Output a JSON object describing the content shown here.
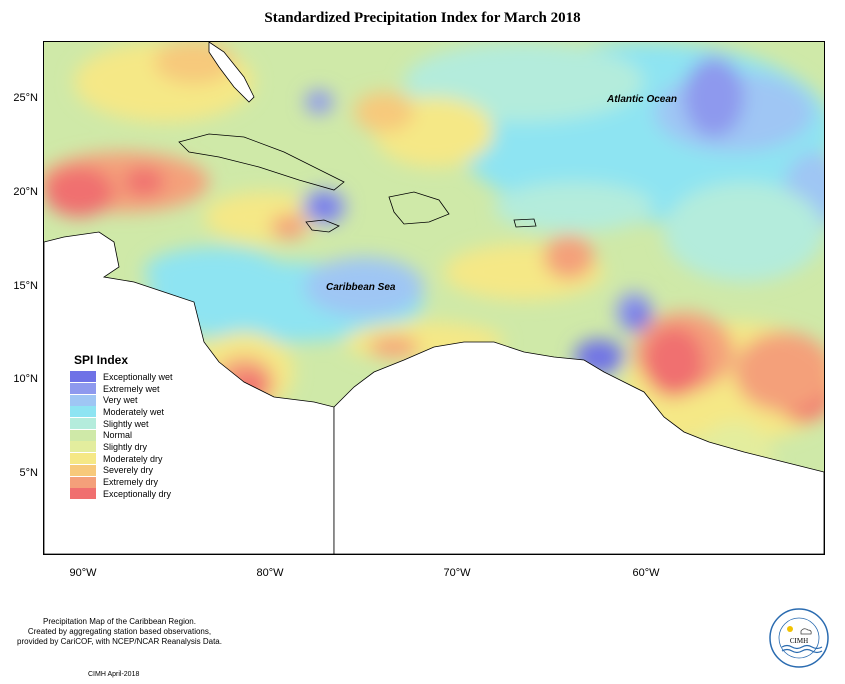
{
  "title": "Standardized Precipitation Index for March 2018",
  "axes": {
    "lat_labels": [
      "25°N",
      "20°N",
      "15°N",
      "10°N",
      "5°N"
    ],
    "lon_labels": [
      "90°W",
      "80°W",
      "70°W",
      "60°W"
    ]
  },
  "map_labels": {
    "atlantic": "Atlantic Ocean",
    "caribbean": "Caribbean Sea"
  },
  "legend": {
    "title": "SPI Index",
    "items": [
      {
        "label": "Exceptionally wet",
        "color": "#6f72e6"
      },
      {
        "label": "Extremely wet",
        "color": "#8e99ee"
      },
      {
        "label": "Very wet",
        "color": "#9fc6f4"
      },
      {
        "label": "Moderately wet",
        "color": "#8ee4f2"
      },
      {
        "label": "Slightly wet",
        "color": "#b4ecdc"
      },
      {
        "label": "Normal",
        "color": "#cfe9a8"
      },
      {
        "label": "Slightly dry",
        "color": "#e3ed9e"
      },
      {
        "label": "Moderately dry",
        "color": "#f5e886"
      },
      {
        "label": "Severely dry",
        "color": "#f7c97b"
      },
      {
        "label": "Extremely dry",
        "color": "#f4a07a"
      },
      {
        "label": "Exceptionally dry",
        "color": "#f06f6f"
      }
    ]
  },
  "credit": {
    "line1": "Precipitation Map of the Caribbean Region.",
    "line2": "Created by aggregating station based observations,",
    "line3": "provided by CariCOF, with NCEP/NCAR Reanalysis Data.",
    "footer": "CIMH April-2018"
  },
  "logo": {
    "text": "CIMH"
  }
}
